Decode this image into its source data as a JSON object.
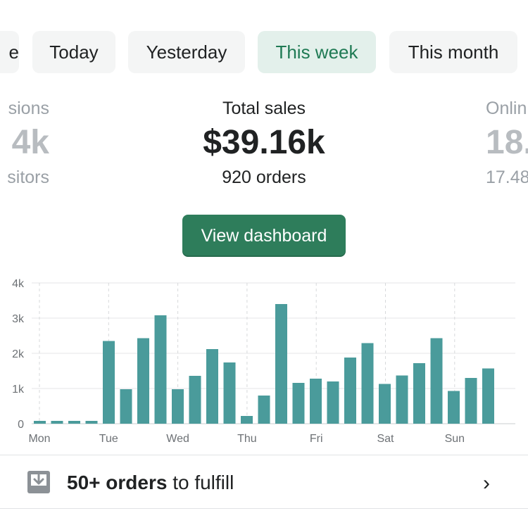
{
  "tabs": {
    "partial_left": "e",
    "today": "Today",
    "yesterday": "Yesterday",
    "this_week": "This week",
    "this_month": "This month"
  },
  "metrics": {
    "left": {
      "label": "sions",
      "value": "4k",
      "sub": "sitors"
    },
    "center": {
      "label": "Total sales",
      "value": "$39.16k",
      "sub": "920 orders"
    },
    "right": {
      "label": "Onlin",
      "value": "18.",
      "sub": "17.48"
    }
  },
  "view_dashboard_label": "View dashboard",
  "colors": {
    "accent": "#2e7d5b",
    "bar": "#4a9b9b",
    "active_tab_bg": "#e3f0eb"
  },
  "chart_data": {
    "type": "bar",
    "y_ticks": [
      "4k",
      "3k",
      "2k",
      "1k",
      "0"
    ],
    "ylim": [
      0,
      4000
    ],
    "day_labels": [
      "Mon",
      "Tue",
      "Wed",
      "Thu",
      "Fri",
      "Sat",
      "Sun"
    ],
    "values": [
      80,
      80,
      80,
      80,
      2350,
      980,
      2430,
      3080,
      980,
      1360,
      2120,
      1740,
      220,
      800,
      3400,
      1160,
      1280,
      1200,
      1880,
      2290,
      1130,
      1370,
      1720,
      2430,
      930,
      1300,
      1570
    ],
    "grid": true
  },
  "fulfill": {
    "icon": "download-tray-icon",
    "bold": "50+ orders",
    "rest": " to fulfill"
  }
}
